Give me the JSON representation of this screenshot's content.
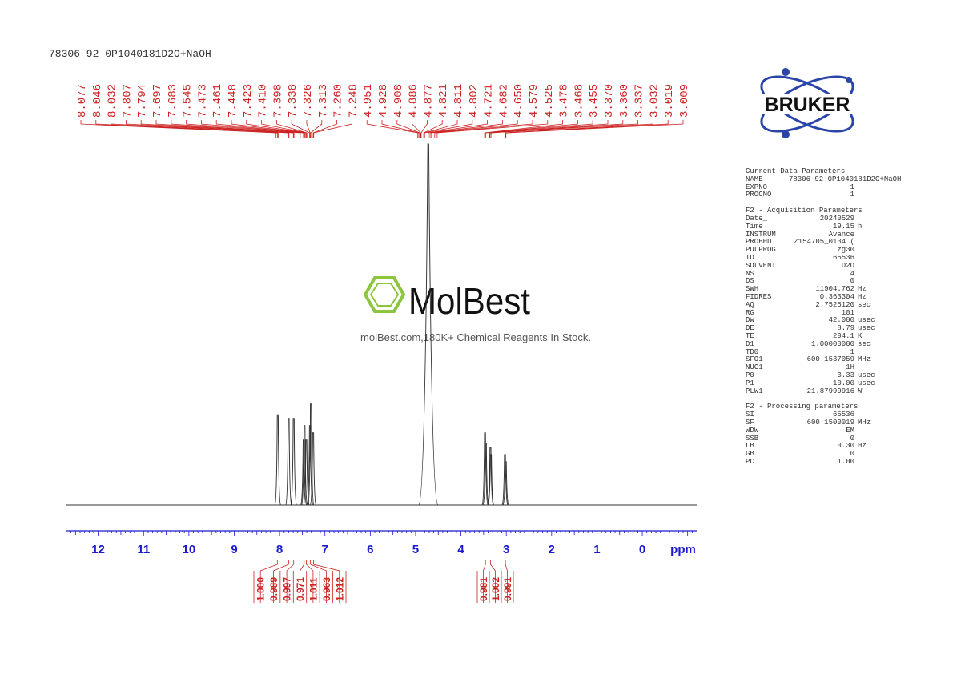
{
  "sample_title": "78306-92-0P1040181D2O+NaOH",
  "logo": {
    "brand": "BRUKER",
    "watermark_name": "MolBest",
    "watermark_tagline": "molBest.com,180K+ Chemical Reagents In Stock."
  },
  "params": {
    "current_title": "Current Data Parameters",
    "current": [
      {
        "k": "NAME",
        "v": "78306-92-0P1040181D2O+NaOH",
        "full": true
      },
      {
        "k": "EXPNO",
        "v": "1",
        "u": ""
      },
      {
        "k": "PROCNO",
        "v": "1",
        "u": ""
      }
    ],
    "acq_title": "F2 - Acquisition Parameters",
    "acq": [
      {
        "k": "Date_",
        "v": "20240529",
        "u": ""
      },
      {
        "k": "Time",
        "v": "19.15",
        "u": "h"
      },
      {
        "k": "INSTRUM",
        "v": "Avance",
        "u": ""
      },
      {
        "k": "PROBHD",
        "v": "Z154705_0134 (",
        "u": ""
      },
      {
        "k": "PULPROG",
        "v": "zg30",
        "u": ""
      },
      {
        "k": "TD",
        "v": "65536",
        "u": ""
      },
      {
        "k": "SOLVENT",
        "v": "D2O",
        "u": ""
      },
      {
        "k": "NS",
        "v": "4",
        "u": ""
      },
      {
        "k": "DS",
        "v": "0",
        "u": ""
      },
      {
        "k": "SWH",
        "v": "11904.762",
        "u": "Hz"
      },
      {
        "k": "FIDRES",
        "v": "0.363304",
        "u": "Hz"
      },
      {
        "k": "AQ",
        "v": "2.7525120",
        "u": "sec"
      },
      {
        "k": "RG",
        "v": "101",
        "u": ""
      },
      {
        "k": "DW",
        "v": "42.000",
        "u": "usec"
      },
      {
        "k": "DE",
        "v": "8.79",
        "u": "usec"
      },
      {
        "k": "TE",
        "v": "294.1",
        "u": "K"
      },
      {
        "k": "D1",
        "v": "1.00000000",
        "u": "sec"
      },
      {
        "k": "TD0",
        "v": "1",
        "u": ""
      },
      {
        "k": "SFO1",
        "v": "600.1537059",
        "u": "MHz"
      },
      {
        "k": "NUC1",
        "v": "1H",
        "u": ""
      },
      {
        "k": "P0",
        "v": "3.33",
        "u": "usec"
      },
      {
        "k": "P1",
        "v": "10.00",
        "u": "usec"
      },
      {
        "k": "PLW1",
        "v": "21.87999916",
        "u": "W"
      }
    ],
    "proc_title": "F2 - Processing parameters",
    "proc": [
      {
        "k": "SI",
        "v": "65536",
        "u": ""
      },
      {
        "k": "SF",
        "v": "600.1500019",
        "u": "MHz"
      },
      {
        "k": "WDW",
        "v": "EM",
        "u": ""
      },
      {
        "k": "SSB",
        "v": "0",
        "u": ""
      },
      {
        "k": "LB",
        "v": "0.30",
        "u": "Hz"
      },
      {
        "k": "GB",
        "v": "0",
        "u": ""
      },
      {
        "k": "PC",
        "v": "1.00",
        "u": ""
      }
    ]
  },
  "chart_data": {
    "type": "line",
    "x_axis_label": "ppm",
    "x_range": [
      12.7,
      -1.2
    ],
    "x_ticks": [
      "12",
      "11",
      "10",
      "9",
      "8",
      "7",
      "6",
      "5",
      "4",
      "3",
      "2",
      "1",
      "0"
    ],
    "colors": {
      "spectrum": "#333333",
      "annotation": "#cc2222",
      "axis": "#1a1acc"
    },
    "peak_labels": [
      "8.077",
      "8.046",
      "8.032",
      "7.807",
      "7.794",
      "7.697",
      "7.683",
      "7.545",
      "7.473",
      "7.461",
      "7.448",
      "7.423",
      "7.410",
      "7.398",
      "7.338",
      "7.326",
      "7.313",
      "7.260",
      "7.248",
      "4.951",
      "4.928",
      "4.908",
      "4.886",
      "4.877",
      "4.821",
      "4.811",
      "4.802",
      "4.721",
      "4.682",
      "4.650",
      "4.579",
      "4.525",
      "3.478",
      "3.468",
      "3.455",
      "3.370",
      "3.360",
      "3.337",
      "3.032",
      "3.019",
      "3.009"
    ],
    "peaks": [
      {
        "ppm": 8.04,
        "height": 0.25
      },
      {
        "ppm": 7.8,
        "height": 0.24
      },
      {
        "ppm": 7.69,
        "height": 0.24
      },
      {
        "ppm": 7.47,
        "height": 0.18
      },
      {
        "ppm": 7.45,
        "height": 0.22
      },
      {
        "ppm": 7.41,
        "height": 0.18
      },
      {
        "ppm": 7.33,
        "height": 0.22
      },
      {
        "ppm": 7.31,
        "height": 0.28
      },
      {
        "ppm": 7.26,
        "height": 0.2
      },
      {
        "ppm": 4.72,
        "height": 1.0
      },
      {
        "ppm": 3.47,
        "height": 0.2
      },
      {
        "ppm": 3.45,
        "height": 0.17
      },
      {
        "ppm": 3.35,
        "height": 0.16
      },
      {
        "ppm": 3.34,
        "height": 0.14
      },
      {
        "ppm": 3.03,
        "height": 0.14
      },
      {
        "ppm": 3.01,
        "height": 0.12
      }
    ],
    "integrals": [
      {
        "ppm": 8.05,
        "value": "1.000"
      },
      {
        "ppm": 7.8,
        "value": "0.989"
      },
      {
        "ppm": 7.69,
        "value": "0.997"
      },
      {
        "ppm": 7.46,
        "value": "0.971"
      },
      {
        "ppm": 7.41,
        "value": "1.011"
      },
      {
        "ppm": 7.32,
        "value": "0.963"
      },
      {
        "ppm": 7.25,
        "value": "1.012"
      },
      {
        "ppm": 3.46,
        "value": "0.981"
      },
      {
        "ppm": 3.35,
        "value": "1.002"
      },
      {
        "ppm": 3.02,
        "value": "0.991"
      }
    ]
  }
}
